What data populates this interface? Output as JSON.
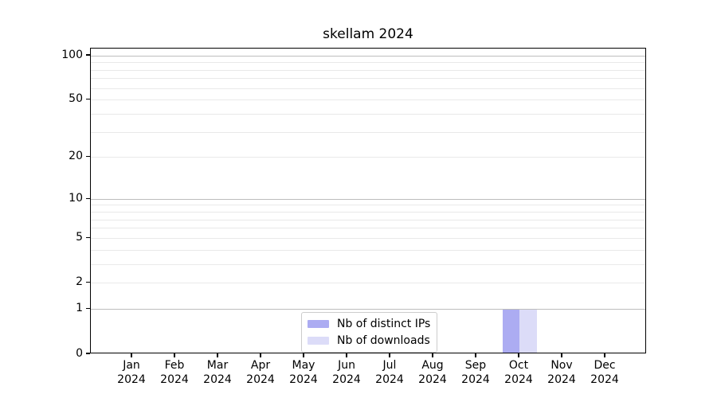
{
  "chart_data": {
    "type": "bar",
    "title": "skellam 2024",
    "x": {
      "months": [
        "Jan",
        "Feb",
        "Mar",
        "Apr",
        "May",
        "Jun",
        "Jul",
        "Aug",
        "Sep",
        "Oct",
        "Nov",
        "Dec"
      ],
      "year": "2024"
    },
    "series": [
      {
        "name": "Nb of distinct IPs",
        "color": "#acacf2",
        "values": [
          0,
          0,
          0,
          0,
          0,
          0,
          0,
          0,
          0,
          1,
          0,
          0
        ]
      },
      {
        "name": "Nb of downloads",
        "color": "#dcdcf8",
        "values": [
          0,
          0,
          0,
          0,
          0,
          0,
          0,
          0,
          0,
          1,
          0,
          0
        ]
      }
    ],
    "y_axis": {
      "scale": "log1p",
      "lim": [
        0,
        112
      ],
      "ticks": [
        0,
        1,
        2,
        5,
        10,
        20,
        50,
        100
      ],
      "tick_labels": [
        "0",
        "1",
        "2",
        "5",
        "10",
        "20",
        "50",
        "100"
      ],
      "major_gridlines": [
        1,
        10,
        100
      ],
      "minor_gridlines": [
        2,
        3,
        4,
        5,
        6,
        7,
        8,
        9,
        20,
        30,
        40,
        50,
        60,
        70,
        80,
        90
      ]
    },
    "legend": {
      "position": "lower center",
      "entries": [
        "Nb of distinct IPs",
        "Nb of downloads"
      ]
    },
    "grid": true
  }
}
